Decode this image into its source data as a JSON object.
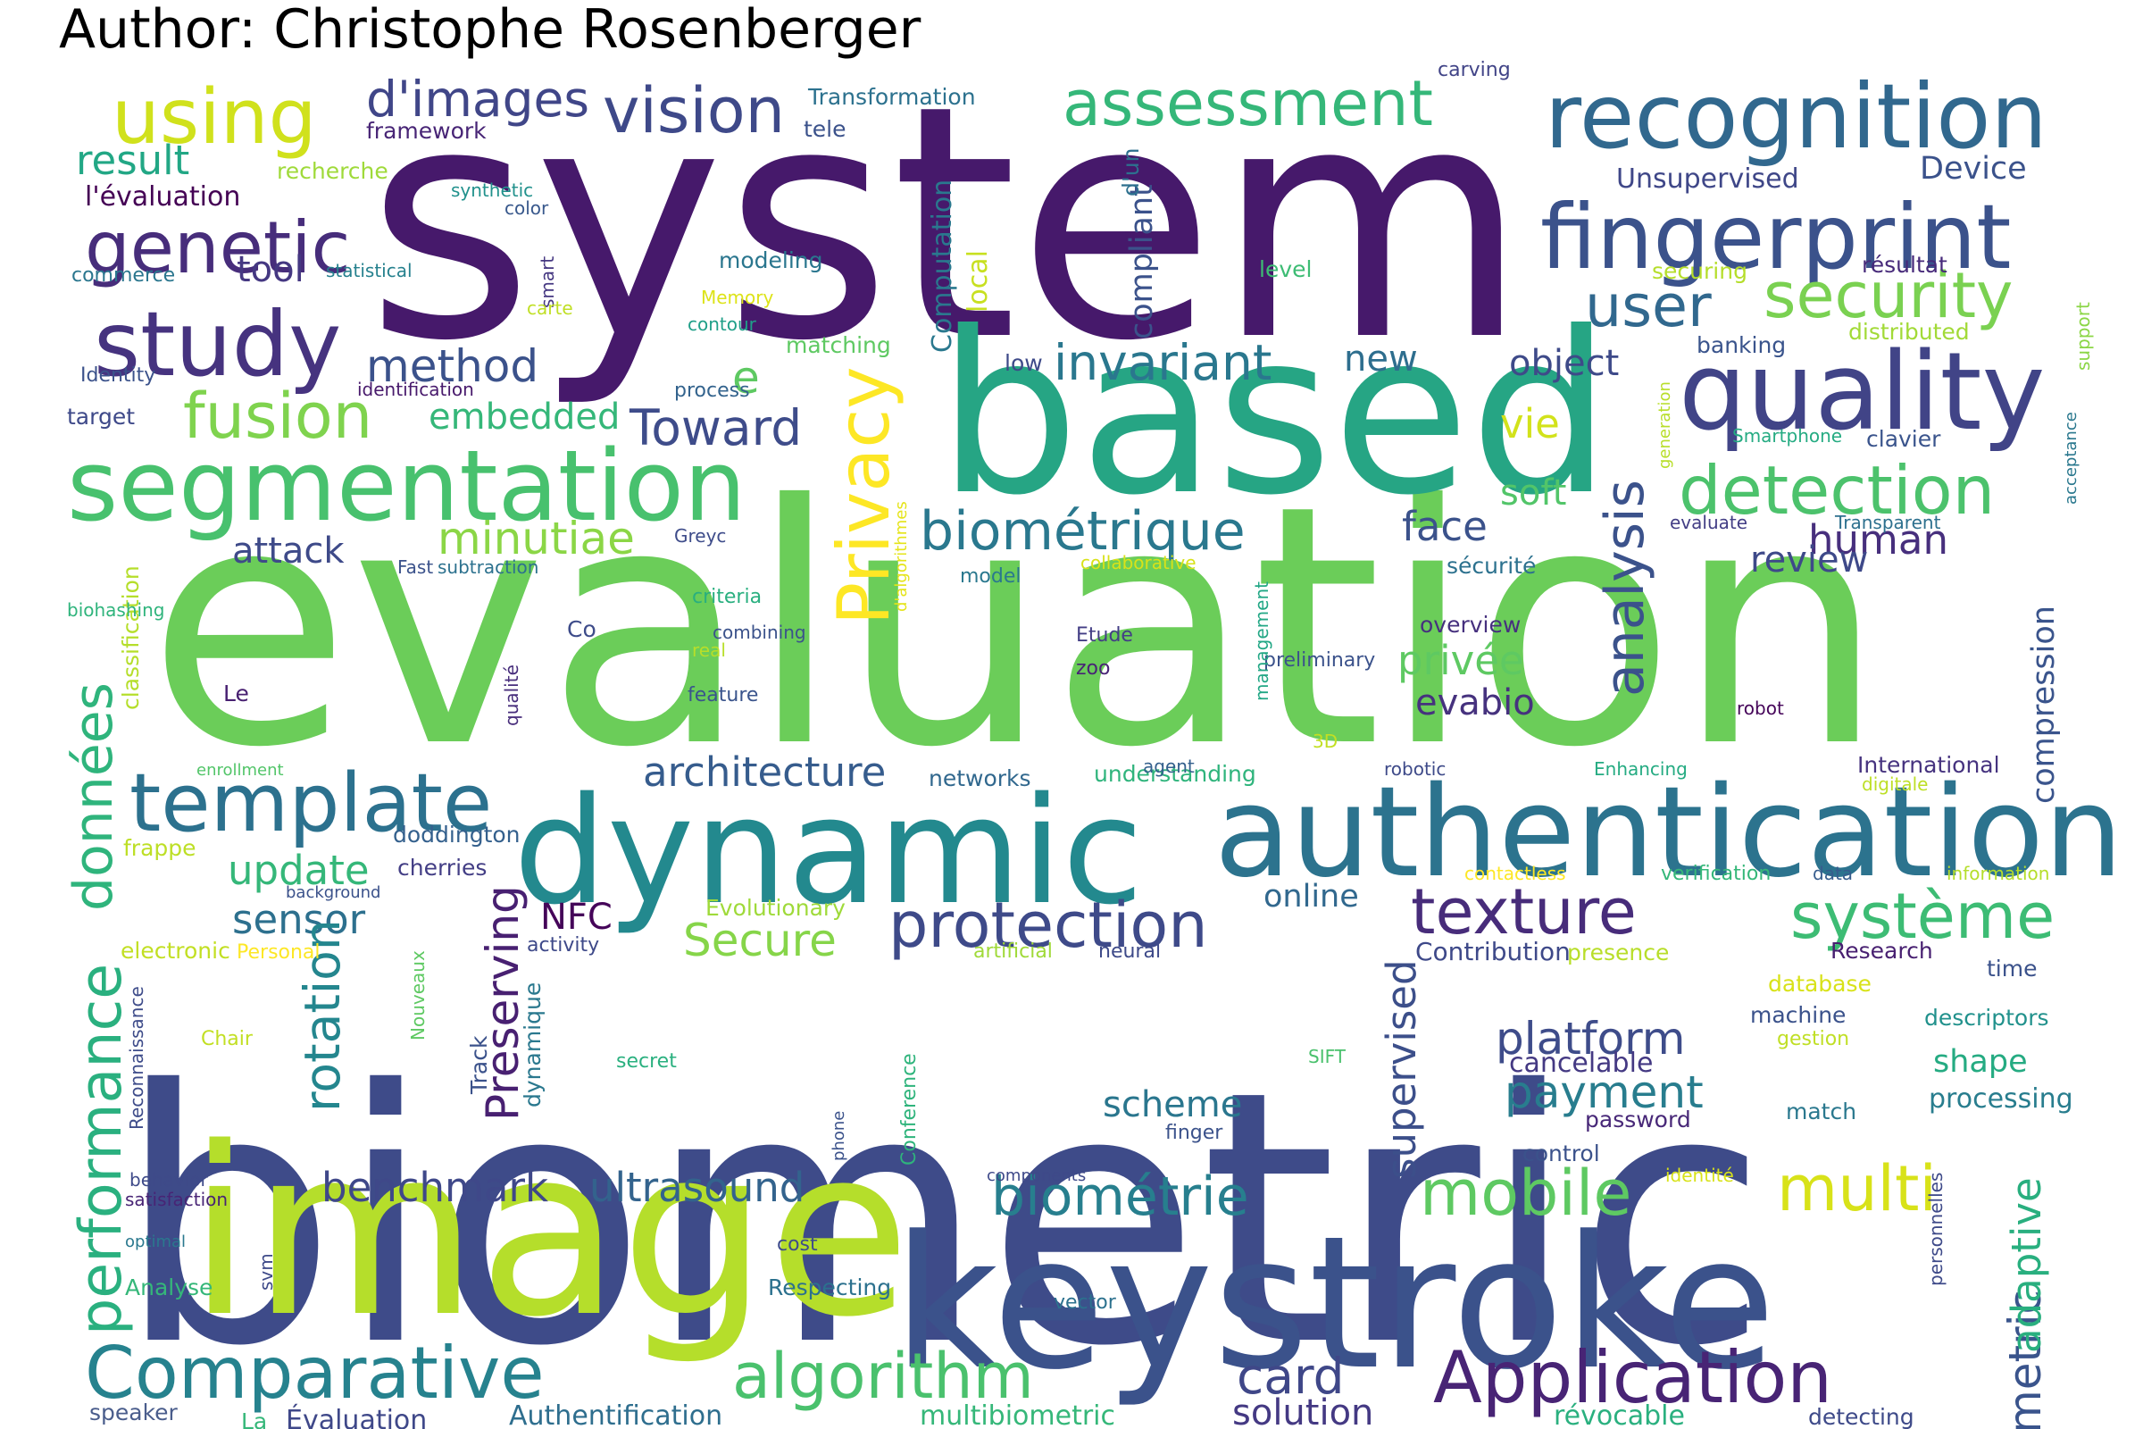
{
  "title": "Author: Christophe Rosenberger",
  "palette": "viridis",
  "words": [
    {
      "t": "system",
      "c": "#46196b"
    },
    {
      "t": "evaluation",
      "c": "#6bcd59"
    },
    {
      "t": "biometric",
      "c": "#3e4b89"
    },
    {
      "t": "based",
      "c": "#26a584"
    },
    {
      "t": "image",
      "c": "#b5de2b"
    },
    {
      "t": "keystroke",
      "c": "#3b528b"
    },
    {
      "t": "dynamic",
      "c": "#23898e"
    },
    {
      "t": "authentication",
      "c": "#2c738e"
    },
    {
      "t": "recognition",
      "c": "#31688e"
    },
    {
      "t": "fingerprint",
      "c": "#3b528b"
    },
    {
      "t": "quality",
      "c": "#414487"
    },
    {
      "t": "segmentation",
      "c": "#48c16e"
    },
    {
      "t": "study",
      "c": "#46337f"
    },
    {
      "t": "genetic",
      "c": "#472d7b"
    },
    {
      "t": "using",
      "c": "#d0e11c"
    },
    {
      "t": "assessment",
      "c": "#35b779"
    },
    {
      "t": "vision",
      "c": "#3e4989"
    },
    {
      "t": "d'images",
      "c": "#404688"
    },
    {
      "t": "template",
      "c": "#2c718e"
    },
    {
      "t": "Comparative",
      "c": "#26828e"
    },
    {
      "t": "Application",
      "c": "#482475"
    },
    {
      "t": "algorithm",
      "c": "#4ac16d"
    },
    {
      "t": "protection",
      "c": "#3e4a89"
    },
    {
      "t": "texture",
      "c": "#472c7a"
    },
    {
      "t": "système",
      "c": "#3dbc74"
    },
    {
      "t": "detection",
      "c": "#4cc26c"
    },
    {
      "t": "security",
      "c": "#7ad151"
    },
    {
      "t": "user",
      "c": "#31688e"
    },
    {
      "t": "biométrique",
      "c": "#2a788e"
    },
    {
      "t": "fusion",
      "c": "#7fd34e"
    },
    {
      "t": "Privacy",
      "c": "#fde725"
    },
    {
      "t": "analysis",
      "c": "#3b528b"
    },
    {
      "t": "performance",
      "c": "#2ab07f"
    },
    {
      "t": "données",
      "c": "#2fb47c"
    },
    {
      "t": "mobile",
      "c": "#5ec962"
    },
    {
      "t": "multi",
      "c": "#d8e219"
    },
    {
      "t": "biométrie",
      "c": "#277f8e"
    },
    {
      "t": "invariant",
      "c": "#2a778e"
    },
    {
      "t": "method",
      "c": "#3b528b"
    },
    {
      "t": "minutiae",
      "c": "#8bd646"
    },
    {
      "t": "Toward",
      "c": "#3e4c8a"
    },
    {
      "t": "architecture",
      "c": "#365c8d"
    },
    {
      "t": "update",
      "c": "#35b779"
    },
    {
      "t": "sensor",
      "c": "#2d708e"
    },
    {
      "t": "Secure",
      "c": "#86d549"
    },
    {
      "t": "platform",
      "c": "#3e4c8a"
    },
    {
      "t": "payment",
      "c": "#287d8e"
    },
    {
      "t": "ultrasound",
      "c": "#33638d"
    },
    {
      "t": "card",
      "c": "#3f4788"
    },
    {
      "t": "solution",
      "c": "#443983"
    },
    {
      "t": "benchmark",
      "c": "#3f4889"
    },
    {
      "t": "rotation",
      "c": "#24868e"
    },
    {
      "t": "metric",
      "c": "#3a548c"
    },
    {
      "t": "adaptive",
      "c": "#29af7f"
    },
    {
      "t": "compression",
      "c": "#3a548c"
    },
    {
      "t": "face",
      "c": "#3b528b"
    },
    {
      "t": "soft",
      "c": "#52c569"
    },
    {
      "t": "human",
      "c": "#472f7d"
    },
    {
      "t": "review",
      "c": "#3e4989"
    },
    {
      "t": "object",
      "c": "#3e4a89"
    },
    {
      "t": "vie",
      "c": "#d2e21b"
    },
    {
      "t": "new",
      "c": "#2e6e8e"
    },
    {
      "t": "privée",
      "c": "#5ec962"
    },
    {
      "t": "evabio",
      "c": "#46327e"
    },
    {
      "t": "Preserving",
      "c": "#482071"
    },
    {
      "t": "NFC",
      "c": "#450559"
    },
    {
      "t": "scheme",
      "c": "#2a768e"
    },
    {
      "t": "supervised",
      "c": "#3c4f8a"
    },
    {
      "t": "attack",
      "c": "#3e4a89"
    },
    {
      "t": "embedded",
      "c": "#35b779"
    },
    {
      "t": "result",
      "c": "#22a785"
    },
    {
      "t": "tool",
      "c": "#453882"
    },
    {
      "t": "e",
      "c": "#5ec962"
    },
    {
      "t": "online",
      "c": "#31688e"
    },
    {
      "t": "cancelable",
      "c": "#443983"
    },
    {
      "t": "shape",
      "c": "#25ab82"
    },
    {
      "t": "processing",
      "c": "#287d8e"
    },
    {
      "t": "Authentification",
      "c": "#2e6e8e"
    },
    {
      "t": "multibiometric",
      "c": "#35b779"
    },
    {
      "t": "révocable",
      "c": "#2ab07f"
    },
    {
      "t": "Évaluation",
      "c": "#3f4889"
    },
    {
      "t": "speaker",
      "c": "#4a5d8c"
    },
    {
      "t": "La",
      "c": "#35b779"
    },
    {
      "t": "detecting",
      "c": "#3e4a89"
    },
    {
      "t": "l'évaluation",
      "c": "#440154"
    },
    {
      "t": "recherche",
      "c": "#9fda3a"
    },
    {
      "t": "framework",
      "c": "#482576"
    },
    {
      "t": "Transformation",
      "c": "#2c718e"
    },
    {
      "t": "tele",
      "c": "#3b528b"
    },
    {
      "t": "Computation",
      "c": "#2a788e"
    },
    {
      "t": "compliant",
      "c": "#3b528b"
    },
    {
      "t": "local",
      "c": "#c8e020"
    },
    {
      "t": "d'un",
      "c": "#2d708e"
    },
    {
      "t": "carving",
      "c": "#414487"
    },
    {
      "t": "Unsupervised",
      "c": "#3f4788"
    },
    {
      "t": "Device",
      "c": "#3b528b"
    },
    {
      "t": "résultat",
      "c": "#472a7a"
    },
    {
      "t": "securing",
      "c": "#b5de2b"
    },
    {
      "t": "support",
      "c": "#8bd646"
    },
    {
      "t": "distributed",
      "c": "#a2da37"
    },
    {
      "t": "banking",
      "c": "#3a548c"
    },
    {
      "t": "generation",
      "c": "#b8de29"
    },
    {
      "t": "acceptance",
      "c": "#2a788e"
    },
    {
      "t": "Smartphone",
      "c": "#25ab82"
    },
    {
      "t": "clavier",
      "c": "#3a548c"
    },
    {
      "t": "synthetic",
      "c": "#21918c"
    },
    {
      "t": "color",
      "c": "#38588c"
    },
    {
      "t": "statistical",
      "c": "#26818e"
    },
    {
      "t": "commerce",
      "c": "#2a768e"
    },
    {
      "t": "smart",
      "c": "#453781"
    },
    {
      "t": "carte",
      "c": "#c0df25"
    },
    {
      "t": "Memory",
      "c": "#dde318"
    },
    {
      "t": "modeling",
      "c": "#2a768e"
    },
    {
      "t": "contour",
      "c": "#1f9f88"
    },
    {
      "t": "level",
      "c": "#3dbc74"
    },
    {
      "t": "matching",
      "c": "#5ec962"
    },
    {
      "t": "low",
      "c": "#3e4a89"
    },
    {
      "t": "Identity",
      "c": "#3b528b"
    },
    {
      "t": "identification",
      "c": "#481a6c"
    },
    {
      "t": "process",
      "c": "#33638d"
    },
    {
      "t": "target",
      "c": "#3e4989"
    },
    {
      "t": "d'algorithmes",
      "c": "#e5e419"
    },
    {
      "t": "Greyc",
      "c": "#3e4c8a"
    },
    {
      "t": "subtraction",
      "c": "#2c718e"
    },
    {
      "t": "Fast",
      "c": "#3b528b"
    },
    {
      "t": "collaborative",
      "c": "#d8e219"
    },
    {
      "t": "model",
      "c": "#2a788e"
    },
    {
      "t": "criteria",
      "c": "#29af7f"
    },
    {
      "t": "sécurité",
      "c": "#2c718e"
    },
    {
      "t": "evaluate",
      "c": "#433e85"
    },
    {
      "t": "Transparent",
      "c": "#2d708e"
    },
    {
      "t": "classification",
      "c": "#b5de2b"
    },
    {
      "t": "biohashing",
      "c": "#2fb47c"
    },
    {
      "t": "Co",
      "c": "#3e4c8a"
    },
    {
      "t": "combining",
      "c": "#3b528b"
    },
    {
      "t": "real",
      "c": "#b8de29"
    },
    {
      "t": "Etude",
      "c": "#433e85"
    },
    {
      "t": "overview",
      "c": "#46307e"
    },
    {
      "t": "preliminary",
      "c": "#3b528b"
    },
    {
      "t": "qualité",
      "c": "#472d7b"
    },
    {
      "t": "zoo",
      "c": "#482475"
    },
    {
      "t": "feature",
      "c": "#3a548c"
    },
    {
      "t": "management",
      "c": "#22a785"
    },
    {
      "t": "Le",
      "c": "#482071"
    },
    {
      "t": "robot",
      "c": "#450559"
    },
    {
      "t": "enrollment",
      "c": "#52c569"
    },
    {
      "t": "3D",
      "c": "#c2df23"
    },
    {
      "t": "understanding",
      "c": "#2fb47c"
    },
    {
      "t": "networks",
      "c": "#31688e"
    },
    {
      "t": "agent",
      "c": "#34608d"
    },
    {
      "t": "robotic",
      "c": "#3e4a89"
    },
    {
      "t": "Enhancing",
      "c": "#25ab82"
    },
    {
      "t": "International",
      "c": "#46337f"
    },
    {
      "t": "digitale",
      "c": "#bddf26"
    },
    {
      "t": "doddington",
      "c": "#34608d"
    },
    {
      "t": "frappe",
      "c": "#bddf26"
    },
    {
      "t": "cherries",
      "c": "#433e85"
    },
    {
      "t": "background",
      "c": "#3b528b"
    },
    {
      "t": "contactless",
      "c": "#fde725"
    },
    {
      "t": "verification",
      "c": "#35b779"
    },
    {
      "t": "data",
      "c": "#365c8d"
    },
    {
      "t": "information",
      "c": "#b5de2b"
    },
    {
      "t": "Evolutionary",
      "c": "#9fda3a"
    },
    {
      "t": "activity",
      "c": "#3e4989"
    },
    {
      "t": "electronic",
      "c": "#c2df23"
    },
    {
      "t": "Personal",
      "c": "#fde725"
    },
    {
      "t": "artificial",
      "c": "#a0da39"
    },
    {
      "t": "neural",
      "c": "#3e4a89"
    },
    {
      "t": "Contribution",
      "c": "#3e4989"
    },
    {
      "t": "presence",
      "c": "#b8de29"
    },
    {
      "t": "Research",
      "c": "#482071"
    },
    {
      "t": "time",
      "c": "#3b528b"
    },
    {
      "t": "database",
      "c": "#d8e219"
    },
    {
      "t": "Reconnaissance",
      "c": "#3e4c8a"
    },
    {
      "t": "Chair",
      "c": "#c2df23"
    },
    {
      "t": "Nouveaux",
      "c": "#5ec962"
    },
    {
      "t": "Track",
      "c": "#3b528b"
    },
    {
      "t": "dynamique",
      "c": "#2a788e"
    },
    {
      "t": "secret",
      "c": "#2ab07f"
    },
    {
      "t": "SIFT",
      "c": "#4ac16d"
    },
    {
      "t": "machine",
      "c": "#3b528b"
    },
    {
      "t": "gestion",
      "c": "#c0df25"
    },
    {
      "t": "descriptors",
      "c": "#21918c"
    },
    {
      "t": "match",
      "c": "#2a788e"
    },
    {
      "t": "password",
      "c": "#482878"
    },
    {
      "t": "finger",
      "c": "#3b528b"
    },
    {
      "t": "phone",
      "c": "#3b528b"
    },
    {
      "t": "Conference",
      "c": "#2fb47c"
    },
    {
      "t": "control",
      "c": "#3b528b"
    },
    {
      "t": "components",
      "c": "#3e4989"
    },
    {
      "t": "identité",
      "c": "#d8e219"
    },
    {
      "t": "behavior",
      "c": "#3e4a89"
    },
    {
      "t": "satisfaction",
      "c": "#482475"
    },
    {
      "t": "optimal",
      "c": "#2a788e"
    },
    {
      "t": "svm",
      "c": "#3e4a89"
    },
    {
      "t": "Analyse",
      "c": "#35b779"
    },
    {
      "t": "cost",
      "c": "#3e4c8a"
    },
    {
      "t": "Respecting",
      "c": "#2c718e"
    },
    {
      "t": "vector",
      "c": "#2c718e"
    },
    {
      "t": "personnelles",
      "c": "#3e4a89"
    }
  ]
}
